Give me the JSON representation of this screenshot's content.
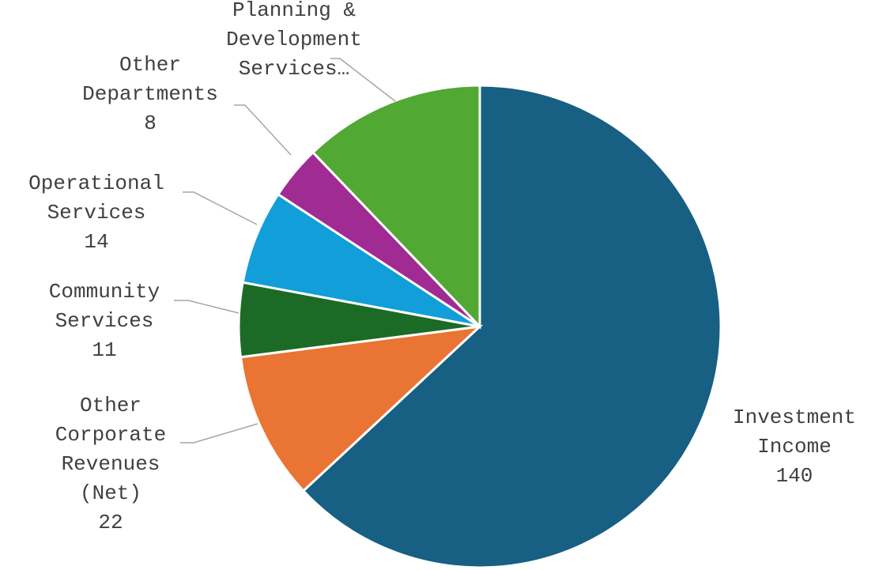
{
  "chart_data": {
    "type": "pie",
    "title": "",
    "legend": "none",
    "slices": [
      {
        "key": "investment",
        "name_lines": [
          "Investment",
          "Income"
        ],
        "value_text": "140",
        "value": 140,
        "color": "#175f83"
      },
      {
        "key": "other_corp",
        "name_lines": [
          "Other",
          "Corporate",
          "Revenues",
          "(Net)"
        ],
        "value_text": "22",
        "value": 22,
        "color": "#ea7433"
      },
      {
        "key": "community",
        "name_lines": [
          "Community",
          "Services"
        ],
        "value_text": "11",
        "value": 11,
        "color": "#1b6b27"
      },
      {
        "key": "operational",
        "name_lines": [
          "Operational",
          "Services"
        ],
        "value_text": "14",
        "value": 14,
        "color": "#129ed8"
      },
      {
        "key": "other_dept",
        "name_lines": [
          "Other",
          "Departments"
        ],
        "value_text": "8",
        "value": 8,
        "color": "#a02b92"
      },
      {
        "key": "planning",
        "name_lines": [
          "Planning &",
          "Development",
          "Services…"
        ],
        "value_text": "",
        "value": 27,
        "color": "#51a833"
      }
    ]
  }
}
